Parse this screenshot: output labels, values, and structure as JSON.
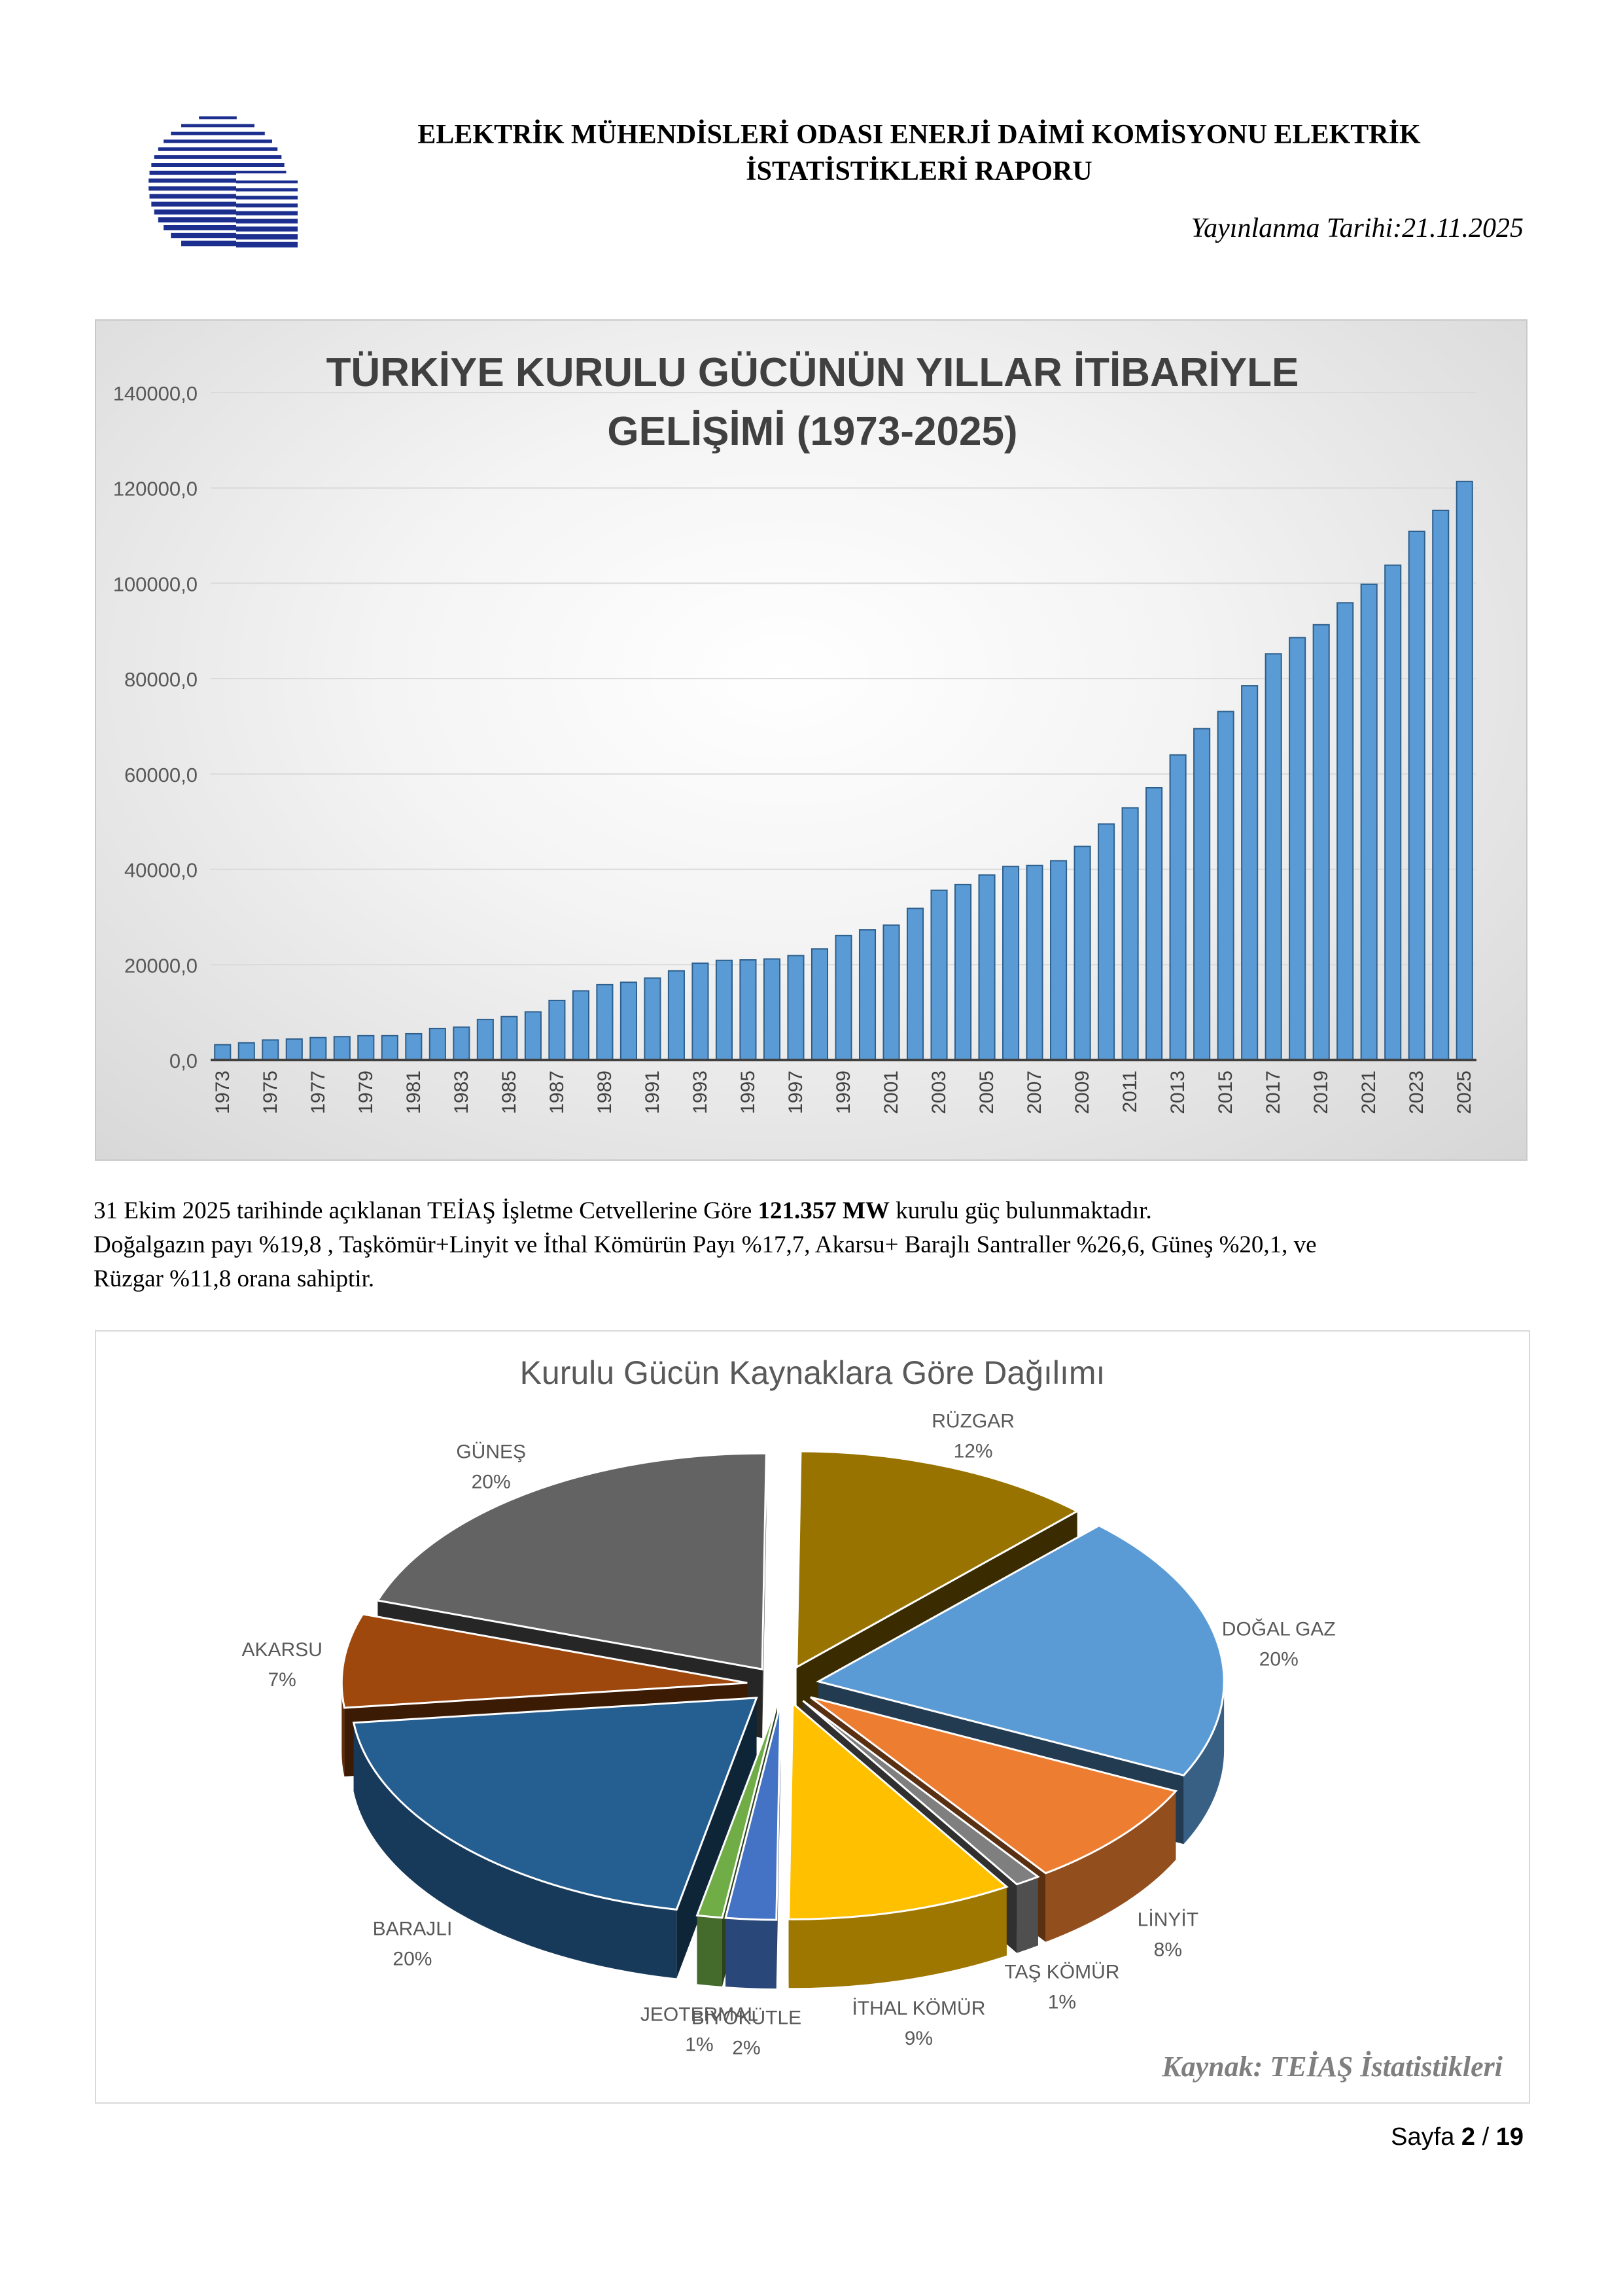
{
  "header": {
    "title_line1": "ELEKTRİK MÜHENDİSLERİ ODASI ENERJİ DAİMİ KOMİSYONU ELEKTRİK",
    "title_line2": "İSTATİSTİKLERİ RAPORU",
    "publish_date": "Yayınlanma Tarihi:21.11.2025",
    "logo_color": "#1c2f8f"
  },
  "summary": {
    "line1_pre": "31 Ekim 2025 tarihinde açıklanan TEİAŞ İşletme Cetvellerine Göre ",
    "line1_bold": "121.357 MW",
    "line1_post": " kurulu güç bulunmaktadır.",
    "line2": "Doğalgazın payı %19,8 , Taşkömür+Linyit ve İthal Kömürün Payı %17,7, Akarsu+ Barajlı Santraller %26,6, Güneş %20,1, ve",
    "line3": "Rüzgar %11,8 orana sahiptir."
  },
  "footer": {
    "prefix": "Sayfa ",
    "page": "2",
    "separator": " / ",
    "total": "19"
  },
  "chart_data": [
    {
      "type": "bar",
      "title_line1": "TÜRKİYE KURULU GÜCÜNÜN YILLAR İTİBARİYLE",
      "title_line2": "GELİŞİMİ (1973-2025)",
      "y_ticks": [
        "0,0",
        "20000,0",
        "40000,0",
        "60000,0",
        "80000,0",
        "100000,0",
        "120000,0",
        "140000,0"
      ],
      "ylim": [
        0,
        140000
      ],
      "grid": true,
      "bar_color": "#5b9bd5",
      "bar_edge_color": "#2e5f8c",
      "categories": [
        1973,
        1974,
        1975,
        1976,
        1977,
        1978,
        1979,
        1980,
        1981,
        1982,
        1983,
        1984,
        1985,
        1986,
        1987,
        1988,
        1989,
        1990,
        1991,
        1992,
        1993,
        1994,
        1995,
        1996,
        1997,
        1998,
        1999,
        2000,
        2001,
        2002,
        2003,
        2004,
        2005,
        2006,
        2007,
        2008,
        2009,
        2010,
        2011,
        2012,
        2013,
        2014,
        2015,
        2016,
        2017,
        2018,
        2019,
        2020,
        2021,
        2022,
        2023,
        2024,
        2025
      ],
      "tick_labels": [
        "1973",
        "1975",
        "1977",
        "1979",
        "1981",
        "1983",
        "1985",
        "1987",
        "1989",
        "1991",
        "1993",
        "1995",
        "1997",
        "1999",
        "2001",
        "2003",
        "2005",
        "2007",
        "2009",
        "2011",
        "2013",
        "2015",
        "2017",
        "2019",
        "2021",
        "2023",
        "2025"
      ],
      "values": [
        3200,
        3600,
        4200,
        4400,
        4700,
        4900,
        5100,
        5100,
        5500,
        6600,
        6900,
        8500,
        9100,
        10100,
        12500,
        14500,
        15800,
        16300,
        17200,
        18700,
        20300,
        20900,
        21000,
        21200,
        21900,
        23300,
        26100,
        27300,
        28300,
        31800,
        35600,
        36800,
        38800,
        40600,
        40800,
        41800,
        44800,
        49500,
        52900,
        57100,
        64000,
        69500,
        73100,
        78500,
        85200,
        88600,
        91300,
        95900,
        99800,
        103800,
        110900,
        115300,
        121357
      ]
    },
    {
      "type": "pie",
      "title": "Kurulu Gücün Kaynaklara Göre Dağılımı",
      "source": "Kaynak: TEİAŞ İstatistikleri",
      "slices": [
        {
          "name": "RÜZGAR",
          "percent": 12,
          "label": "12%",
          "color": "#997300"
        },
        {
          "name": "DOĞAL GAZ",
          "percent": 20,
          "label": "20%",
          "color": "#5b9bd5"
        },
        {
          "name": "LİNYİT",
          "percent": 8,
          "label": "8%",
          "color": "#ed7d31"
        },
        {
          "name": "TAŞ KÖMÜR",
          "percent": 1,
          "label": "1%",
          "color": "#7f7f7f"
        },
        {
          "name": "İTHAL KÖMÜR",
          "percent": 9,
          "label": "9%",
          "color": "#ffc000"
        },
        {
          "name": "BİYOKÜTLE",
          "percent": 2,
          "label": "2%",
          "color": "#4472c4"
        },
        {
          "name": "JEOTERMAL",
          "percent": 1,
          "label": "1%",
          "color": "#70ad47"
        },
        {
          "name": "BARAJLI",
          "percent": 20,
          "label": "20%",
          "color": "#255e91"
        },
        {
          "name": "AKARSU",
          "percent": 7,
          "label": "7%",
          "color": "#9e480e"
        },
        {
          "name": "GÜNEŞ",
          "percent": 20,
          "label": "20%",
          "color": "#636363"
        }
      ]
    }
  ]
}
